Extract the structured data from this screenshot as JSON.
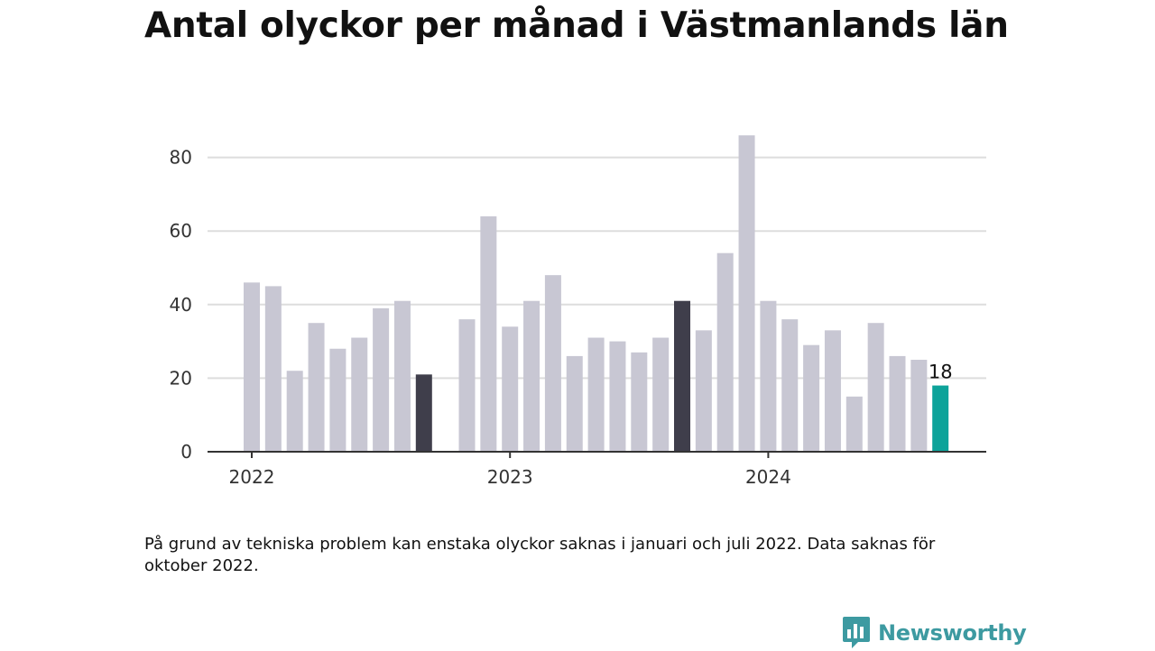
{
  "header": {
    "title": "Antal olyckor per månad i Västmanlands län"
  },
  "chart_data": {
    "type": "bar",
    "title": "Antal olyckor per månad i Västmanlands län",
    "xlabel": "",
    "ylabel": "",
    "ylim": [
      0,
      90
    ],
    "yticks": [
      0,
      20,
      40,
      60,
      80
    ],
    "grid": true,
    "xtick_labels": [
      "2022",
      "2023",
      "2024"
    ],
    "categories": [
      "2022-01",
      "2022-02",
      "2022-03",
      "2022-04",
      "2022-05",
      "2022-06",
      "2022-07",
      "2022-08",
      "2022-09",
      "2022-10",
      "2022-11",
      "2022-12",
      "2023-01",
      "2023-02",
      "2023-03",
      "2023-04",
      "2023-05",
      "2023-06",
      "2023-07",
      "2023-08",
      "2023-09",
      "2023-10",
      "2023-11",
      "2023-12",
      "2024-01",
      "2024-02",
      "2024-03",
      "2024-04",
      "2024-05",
      "2024-06",
      "2024-07",
      "2024-08",
      "2024-09"
    ],
    "values": [
      46,
      45,
      22,
      35,
      28,
      31,
      39,
      41,
      21,
      null,
      36,
      64,
      34,
      41,
      48,
      26,
      31,
      30,
      27,
      31,
      41,
      33,
      54,
      86,
      41,
      36,
      29,
      33,
      15,
      35,
      26,
      25,
      18
    ],
    "colors": {
      "default": "#c8c7d3",
      "highlight": "#3f3e4b",
      "latest": "#0da39a",
      "grid": "#dddddd",
      "axis": "#333333"
    },
    "highlight_categories": [
      "2022-09",
      "2023-09"
    ],
    "latest_category": "2024-09",
    "data_labels": [
      {
        "category": "2024-09",
        "text": "18"
      }
    ]
  },
  "footnote": "På grund av tekniska problem kan enstaka olyckor saknas i januari och juli 2022. Data saknas för oktober 2022.",
  "brand": {
    "name": "Newsworthy",
    "icon": "newsworthy-bar-chart-icon",
    "color": "#3d9aa1"
  }
}
